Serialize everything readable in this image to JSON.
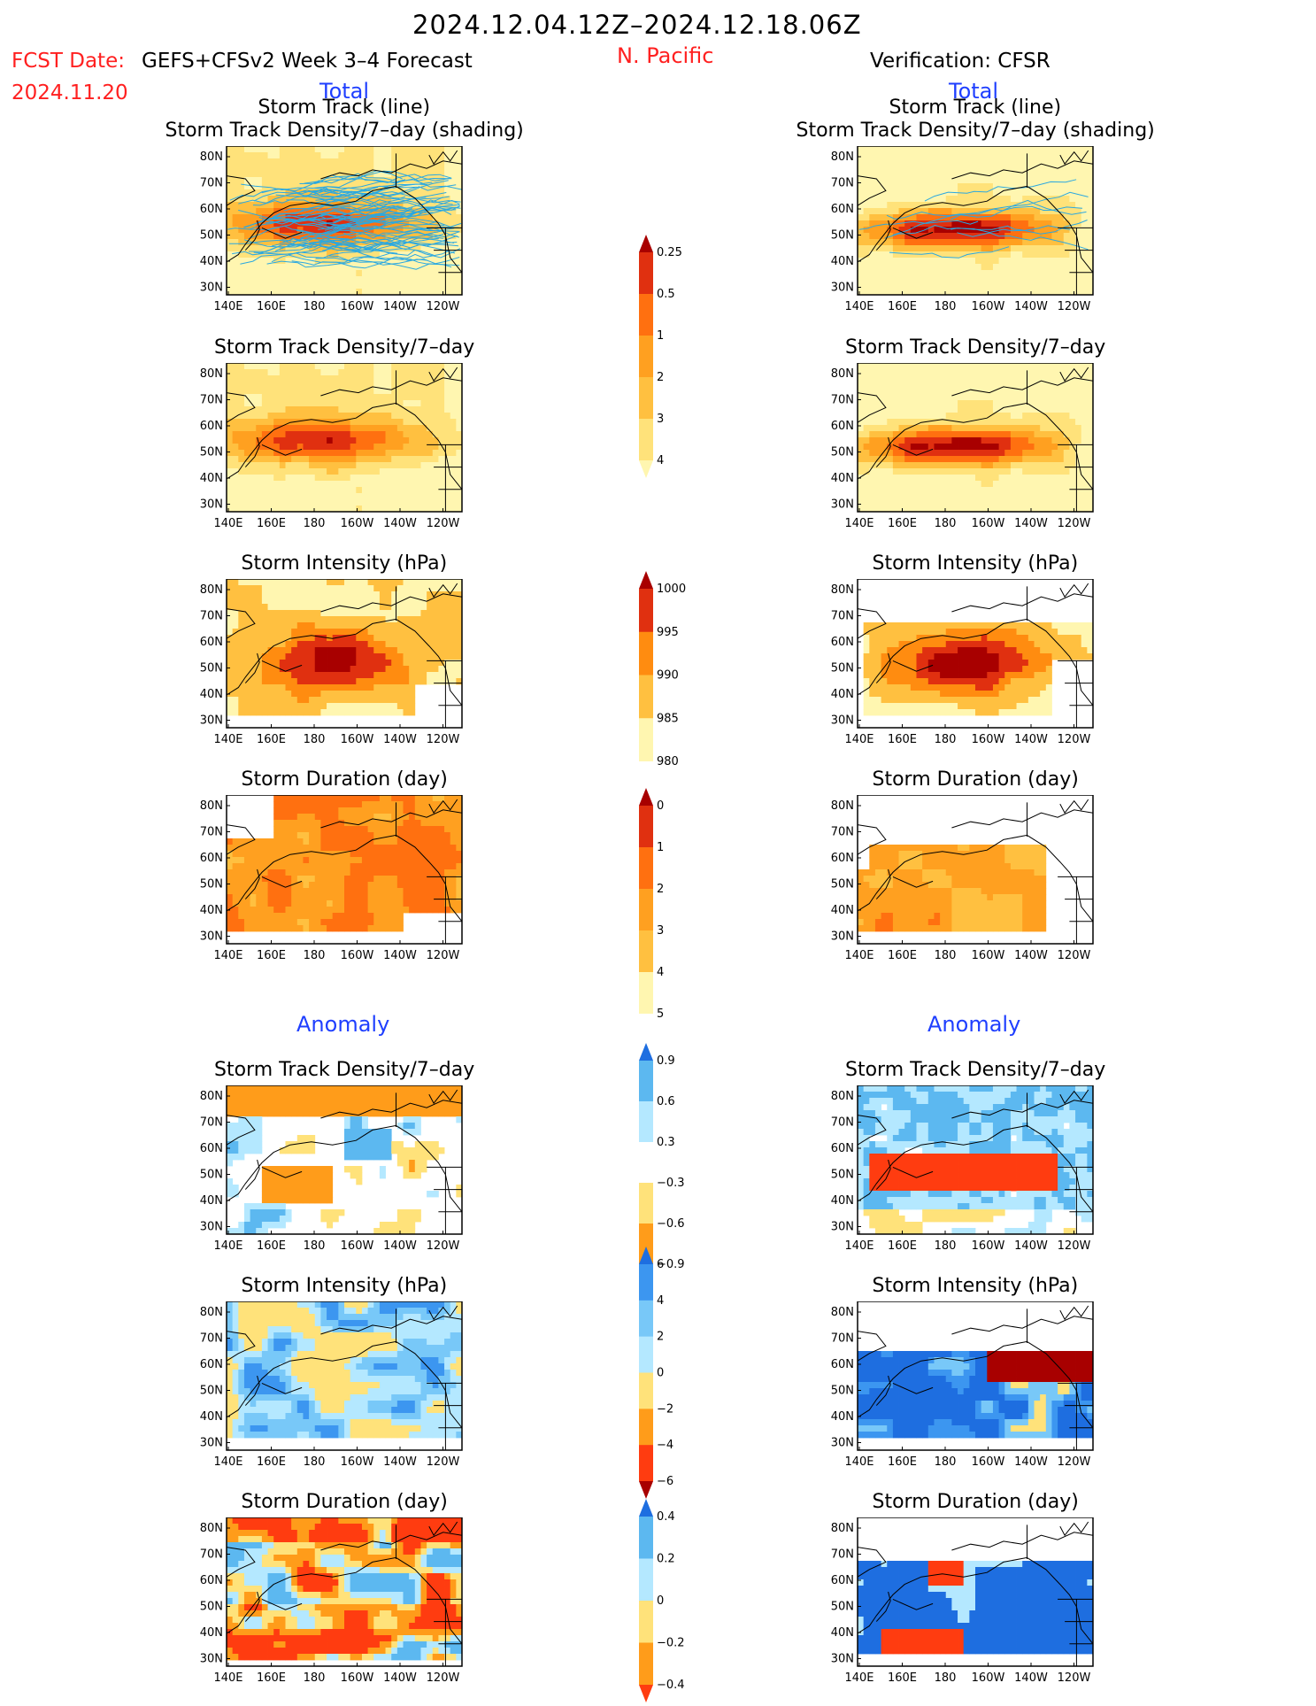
{
  "header": {
    "date_range": "2024.12.04.12Z–2024.12.18.06Z",
    "fcst_date_label": "FCST Date:",
    "forecast_title": "GEFS+CFSv2 Week 3–4 Forecast",
    "fcst_date_value": "2024.11.20",
    "region": "N. Pacific",
    "verification_title": "Verification: CFSR",
    "left_section_total": "Total",
    "right_section_total": "Total",
    "left_section_anomaly": "Anomaly",
    "right_section_anomaly": "Anomaly"
  },
  "colors": {
    "red_text": "#ff2020",
    "blue_text": "#1f3fff",
    "track_line": "#2aa8e0",
    "ocean": "#ffffff",
    "coast": "#000000"
  },
  "map": {
    "lat_ticks": [
      "80N",
      "70N",
      "60N",
      "50N",
      "40N",
      "30N"
    ],
    "lon_ticks": [
      "140E",
      "160E",
      "180",
      "160W",
      "140W",
      "120W"
    ]
  },
  "panels": {
    "left": [
      {
        "title1": "Storm Track (line)",
        "title2": "Storm Track Density/7–day (shading)",
        "field": "density",
        "scale": "total_density",
        "tracks": true,
        "source": "fcst"
      },
      {
        "title1": "",
        "title2": "Storm Track Density/7–day",
        "field": "density",
        "scale": "total_density",
        "tracks": false,
        "source": "fcst"
      },
      {
        "title1": "",
        "title2": "Storm Intensity (hPa)",
        "field": "intensity",
        "scale": "total_intensity",
        "tracks": false,
        "source": "fcst"
      },
      {
        "title1": "",
        "title2": "Storm Duration (day)",
        "field": "duration",
        "scale": "total_duration",
        "tracks": false,
        "source": "fcst"
      },
      {
        "title1": "",
        "title2": "Storm Track Density/7–day",
        "field": "anom_density",
        "scale": "anom_density",
        "tracks": false,
        "source": "fcst"
      },
      {
        "title1": "",
        "title2": "Storm Intensity (hPa)",
        "field": "anom_intensity",
        "scale": "anom_intensity",
        "tracks": false,
        "source": "fcst"
      },
      {
        "title1": "",
        "title2": "Storm Duration (day)",
        "field": "anom_duration",
        "scale": "anom_duration",
        "tracks": false,
        "source": "fcst"
      }
    ],
    "right": [
      {
        "title1": "Storm Track (line)",
        "title2": "Storm Track Density/7–day (shading)",
        "field": "density",
        "scale": "total_density",
        "tracks": true,
        "source": "verif"
      },
      {
        "title1": "",
        "title2": "Storm Track Density/7–day",
        "field": "density",
        "scale": "total_density",
        "tracks": false,
        "source": "verif"
      },
      {
        "title1": "",
        "title2": "Storm Intensity (hPa)",
        "field": "intensity",
        "scale": "total_intensity",
        "tracks": false,
        "source": "verif"
      },
      {
        "title1": "",
        "title2": "Storm Duration (day)",
        "field": "duration",
        "scale": "total_duration",
        "tracks": false,
        "source": "verif"
      },
      {
        "title1": "",
        "title2": "Storm Track Density/7–day",
        "field": "anom_density",
        "scale": "anom_density",
        "tracks": false,
        "source": "verif"
      },
      {
        "title1": "",
        "title2": "Storm Intensity (hPa)",
        "field": "anom_intensity",
        "scale": "anom_intensity",
        "tracks": false,
        "source": "verif"
      },
      {
        "title1": "",
        "title2": "Storm Duration (day)",
        "field": "anom_duration",
        "scale": "anom_duration",
        "tracks": false,
        "source": "verif"
      }
    ]
  },
  "chart_data": {
    "type": "heatmap",
    "colorbars": {
      "total_density": {
        "labels": [
          "0.25",
          "0.5",
          "1",
          "2",
          "3",
          "4"
        ],
        "colors": [
          "#fff6b0",
          "#ffe27a",
          "#ffc040",
          "#ffa020",
          "#ff7010",
          "#e03010",
          "#a80000"
        ]
      },
      "total_intensity": {
        "labels": [
          "1000",
          "995",
          "990",
          "985",
          "980"
        ],
        "colors": [
          "#ffffff",
          "#fff6b0",
          "#ffc040",
          "#ff8c10",
          "#e03010",
          "#a80000"
        ]
      },
      "total_duration": {
        "labels": [
          "0",
          "1",
          "2",
          "3",
          "4",
          "5"
        ],
        "colors": [
          "#ffffff",
          "#fff6b0",
          "#ffc040",
          "#ffa020",
          "#ff7010",
          "#e03010",
          "#a80000"
        ]
      },
      "anom_density": {
        "labels": [
          "0.9",
          "0.6",
          "0.3",
          "−0.3",
          "−0.6",
          "−0.9"
        ],
        "colors": [
          "#ff3c10",
          "#ff9c1a",
          "#ffe27a",
          "#ffffff",
          "#b4e8ff",
          "#5cb8f0",
          "#1e6ee0"
        ]
      },
      "anom_intensity": {
        "labels": [
          "6",
          "4",
          "2",
          "0",
          "−2",
          "−4",
          "−6"
        ],
        "colors": [
          "#a80000",
          "#ff3c10",
          "#ff9c1a",
          "#ffe27a",
          "#b4e8ff",
          "#78c8f8",
          "#3c96f0",
          "#1e6ee0"
        ]
      },
      "anom_duration": {
        "labels": [
          "0.4",
          "0.2",
          "0",
          "−0.2",
          "−0.4"
        ],
        "colors": [
          "#ff3c10",
          "#ff9c1a",
          "#ffe27a",
          "#b4e8ff",
          "#5cb8f0",
          "#1e6ee0"
        ]
      }
    }
  }
}
